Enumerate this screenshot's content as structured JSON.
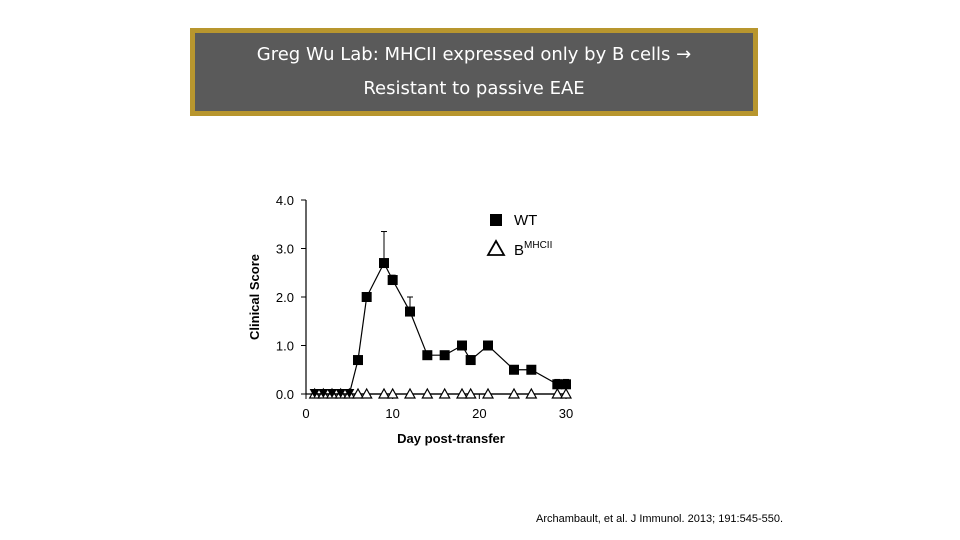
{
  "header": {
    "title_line1": "Greg Wu Lab:  MHCII expressed only by B cells →",
    "title_line2": "Resistant to passive EAE",
    "background_color": "#5a5a5a",
    "border_color": "#b8962e"
  },
  "citation": "Archambault, et al. J Immunol. 2013; 191:545-550.",
  "chart_data": {
    "type": "line",
    "title": "",
    "xlabel": "Day post-transfer",
    "ylabel": "Clinical Score",
    "xlim": [
      0,
      30
    ],
    "ylim": [
      0,
      4
    ],
    "x_ticks": [
      "0",
      "10",
      "20",
      "30"
    ],
    "y_ticks": [
      "0.0",
      "1.0",
      "2.0",
      "3.0",
      "4.0"
    ],
    "grid": false,
    "legend_position": "top-right",
    "series": [
      {
        "name": "WT",
        "marker": "filled-square",
        "color": "#000000",
        "x": [
          1,
          2,
          3,
          4,
          5,
          6,
          7,
          9,
          10,
          12,
          14,
          16,
          18,
          19,
          21,
          24,
          26,
          29,
          30
        ],
        "y": [
          0,
          0,
          0,
          0,
          0,
          0.7,
          2.0,
          2.7,
          2.35,
          1.7,
          0.8,
          0.8,
          1.0,
          0.7,
          1.0,
          0.5,
          0.5,
          0.2,
          0.2
        ],
        "error": [
          0,
          0,
          0,
          0,
          0,
          0.05,
          0.05,
          0.65,
          0.1,
          0.3,
          0.05,
          0.05,
          0.05,
          0.05,
          0.05,
          0.05,
          0.05,
          0.1,
          0.1
        ]
      },
      {
        "name": "B",
        "name_superscript": "MHCII",
        "marker": "open-triangle",
        "color": "#000000",
        "x": [
          1,
          2,
          3,
          4,
          5,
          6,
          7,
          9,
          10,
          12,
          14,
          16,
          18,
          19,
          21,
          24,
          26,
          29,
          30
        ],
        "y": [
          0,
          0,
          0,
          0,
          0,
          0,
          0,
          0,
          0,
          0,
          0,
          0,
          0,
          0,
          0,
          0,
          0,
          0,
          0
        ]
      }
    ]
  }
}
